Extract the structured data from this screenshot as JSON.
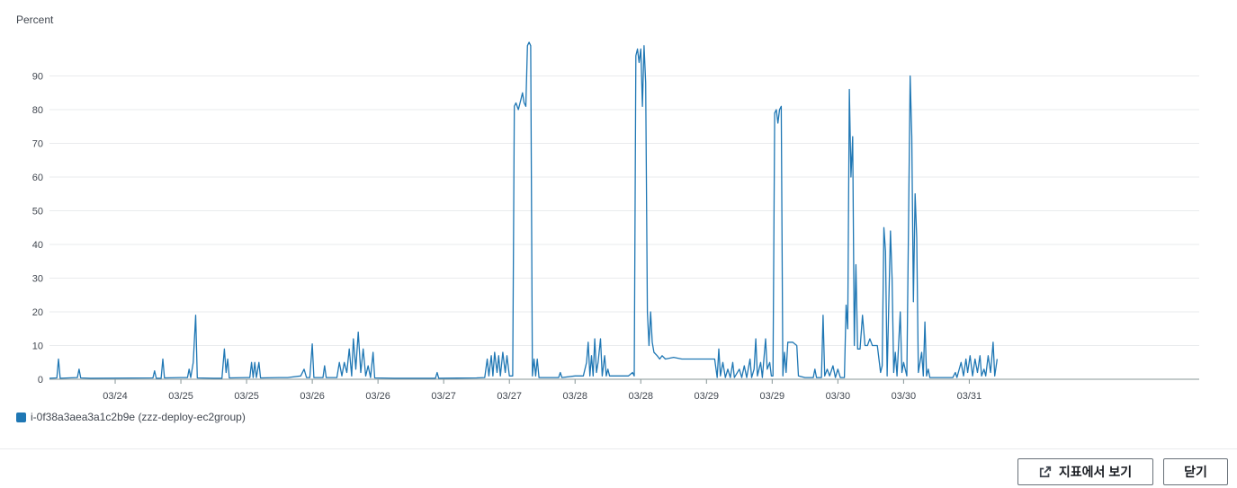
{
  "chart_data": {
    "type": "line",
    "ylabel": "Percent",
    "ylim": [
      0,
      100
    ],
    "yticks": [
      0,
      10,
      20,
      30,
      40,
      50,
      60,
      70,
      80,
      90
    ],
    "xlim": [
      0,
      140
    ],
    "xticks": [
      {
        "x": 8,
        "label": "03/24"
      },
      {
        "x": 16,
        "label": "03/25"
      },
      {
        "x": 24,
        "label": "03/25"
      },
      {
        "x": 32,
        "label": "03/26"
      },
      {
        "x": 40,
        "label": "03/26"
      },
      {
        "x": 48,
        "label": "03/27"
      },
      {
        "x": 56,
        "label": "03/27"
      },
      {
        "x": 64,
        "label": "03/28"
      },
      {
        "x": 72,
        "label": "03/28"
      },
      {
        "x": 80,
        "label": "03/29"
      },
      {
        "x": 88,
        "label": "03/29"
      },
      {
        "x": 96,
        "label": "03/30"
      },
      {
        "x": 104,
        "label": "03/30"
      },
      {
        "x": 112,
        "label": "03/31"
      }
    ],
    "grid": true,
    "legend_position": "bottom-left",
    "series": [
      {
        "name": "i-0f38a3aea3a1c2b9e (zzz-deploy-ec2group)",
        "color": "#1f77b4",
        "points": [
          [
            0,
            0.3
          ],
          [
            0.9,
            0.4
          ],
          [
            1.1,
            6
          ],
          [
            1.3,
            0.3
          ],
          [
            3.4,
            0.5
          ],
          [
            3.6,
            3
          ],
          [
            3.8,
            0.4
          ],
          [
            5,
            0.3
          ],
          [
            12.6,
            0.4
          ],
          [
            12.8,
            2.5
          ],
          [
            13,
            0.3
          ],
          [
            13.6,
            0.3
          ],
          [
            13.8,
            6
          ],
          [
            14,
            0.4
          ],
          [
            16,
            0.5
          ],
          [
            16.8,
            0.5
          ],
          [
            17,
            3
          ],
          [
            17.2,
            0.5
          ],
          [
            17.5,
            5
          ],
          [
            17.8,
            19
          ],
          [
            18,
            0.4
          ],
          [
            20,
            0.3
          ],
          [
            21,
            0.3
          ],
          [
            21.3,
            9
          ],
          [
            21.5,
            2
          ],
          [
            21.7,
            6
          ],
          [
            21.9,
            0.4
          ],
          [
            24,
            0.5
          ],
          [
            24.4,
            0.5
          ],
          [
            24.6,
            5
          ],
          [
            24.8,
            0.5
          ],
          [
            25,
            5
          ],
          [
            25.2,
            0.5
          ],
          [
            25.5,
            5
          ],
          [
            25.7,
            0.4
          ],
          [
            28,
            0.5
          ],
          [
            29,
            0.5
          ],
          [
            30.6,
            1
          ],
          [
            31,
            3
          ],
          [
            31.3,
            0.5
          ],
          [
            31.7,
            0.5
          ],
          [
            32,
            10.5
          ],
          [
            32.2,
            0.5
          ],
          [
            33.3,
            0.5
          ],
          [
            33.5,
            4
          ],
          [
            33.7,
            0.5
          ],
          [
            35,
            0.5
          ],
          [
            35.3,
            5
          ],
          [
            35.6,
            1
          ],
          [
            35.9,
            5
          ],
          [
            36.2,
            2
          ],
          [
            36.5,
            9
          ],
          [
            36.8,
            1
          ],
          [
            37,
            12
          ],
          [
            37.3,
            3
          ],
          [
            37.6,
            14
          ],
          [
            37.9,
            2
          ],
          [
            38.2,
            9
          ],
          [
            38.5,
            1
          ],
          [
            38.8,
            4
          ],
          [
            39.1,
            0.5
          ],
          [
            39.4,
            8
          ],
          [
            39.6,
            0.4
          ],
          [
            42,
            0.3
          ],
          [
            47,
            0.3
          ],
          [
            47.2,
            2
          ],
          [
            47.4,
            0.3
          ],
          [
            52,
            0.4
          ],
          [
            53,
            0.5
          ],
          [
            53.3,
            6
          ],
          [
            53.5,
            1
          ],
          [
            53.8,
            7
          ],
          [
            54,
            1
          ],
          [
            54.2,
            8
          ],
          [
            54.5,
            2
          ],
          [
            54.7,
            7
          ],
          [
            54.9,
            1
          ],
          [
            55.2,
            8
          ],
          [
            55.5,
            2
          ],
          [
            55.7,
            7
          ],
          [
            56,
            1
          ],
          [
            56.4,
            1
          ],
          [
            56.6,
            81
          ],
          [
            56.8,
            82
          ],
          [
            57.1,
            80
          ],
          [
            57.4,
            83
          ],
          [
            57.6,
            85
          ],
          [
            57.8,
            82
          ],
          [
            58,
            81
          ],
          [
            58.2,
            99
          ],
          [
            58.4,
            100
          ],
          [
            58.6,
            99
          ],
          [
            58.8,
            1
          ],
          [
            59,
            6
          ],
          [
            59.2,
            1
          ],
          [
            59.4,
            6
          ],
          [
            59.6,
            0.5
          ],
          [
            62,
            0.5
          ],
          [
            62.2,
            2
          ],
          [
            62.4,
            0.5
          ],
          [
            64,
            1
          ],
          [
            65,
            1
          ],
          [
            65.4,
            5
          ],
          [
            65.6,
            11
          ],
          [
            65.8,
            1
          ],
          [
            66,
            7
          ],
          [
            66.2,
            1
          ],
          [
            66.4,
            12
          ],
          [
            66.6,
            2
          ],
          [
            66.8,
            5
          ],
          [
            67.1,
            12
          ],
          [
            67.3,
            1
          ],
          [
            67.6,
            7
          ],
          [
            67.8,
            1
          ],
          [
            68,
            3
          ],
          [
            68.2,
            1
          ],
          [
            69.5,
            1
          ],
          [
            70.5,
            1
          ],
          [
            71,
            2
          ],
          [
            71.2,
            1
          ],
          [
            71.4,
            96
          ],
          [
            71.6,
            98
          ],
          [
            71.8,
            94
          ],
          [
            72,
            98
          ],
          [
            72.2,
            81
          ],
          [
            72.4,
            99
          ],
          [
            72.6,
            88
          ],
          [
            72.8,
            20
          ],
          [
            73,
            10
          ],
          [
            73.2,
            20
          ],
          [
            73.4,
            11
          ],
          [
            73.6,
            8
          ],
          [
            74,
            7
          ],
          [
            74.3,
            6
          ],
          [
            74.6,
            7
          ],
          [
            75,
            6
          ],
          [
            76,
            6.5
          ],
          [
            77,
            6
          ],
          [
            78,
            6
          ],
          [
            80,
            6
          ],
          [
            81,
            6
          ],
          [
            81.3,
            0.5
          ],
          [
            81.5,
            9
          ],
          [
            81.7,
            1
          ],
          [
            82,
            5
          ],
          [
            82.3,
            0.5
          ],
          [
            82.6,
            3
          ],
          [
            82.9,
            0.5
          ],
          [
            83.2,
            5
          ],
          [
            83.4,
            0.5
          ],
          [
            84,
            3
          ],
          [
            84.3,
            0.5
          ],
          [
            84.6,
            4
          ],
          [
            84.9,
            0.5
          ],
          [
            85.3,
            6
          ],
          [
            85.5,
            0.5
          ],
          [
            85.8,
            3
          ],
          [
            86,
            12
          ],
          [
            86.2,
            1
          ],
          [
            86.6,
            5
          ],
          [
            86.8,
            0.5
          ],
          [
            87.2,
            12
          ],
          [
            87.4,
            3
          ],
          [
            87.7,
            5
          ],
          [
            87.9,
            1
          ],
          [
            88.1,
            1
          ],
          [
            88.3,
            79
          ],
          [
            88.5,
            80
          ],
          [
            88.7,
            76
          ],
          [
            88.9,
            80
          ],
          [
            89.1,
            81
          ],
          [
            89.3,
            1
          ],
          [
            89.5,
            8
          ],
          [
            89.7,
            2
          ],
          [
            89.9,
            11
          ],
          [
            90.5,
            11
          ],
          [
            91,
            10
          ],
          [
            91.2,
            1
          ],
          [
            92,
            0.5
          ],
          [
            93,
            0.5
          ],
          [
            93.2,
            3
          ],
          [
            93.4,
            0.5
          ],
          [
            94,
            0.5
          ],
          [
            94.2,
            19
          ],
          [
            94.4,
            1
          ],
          [
            94.7,
            3
          ],
          [
            95,
            1
          ],
          [
            95.4,
            4
          ],
          [
            95.7,
            0.5
          ],
          [
            96,
            3
          ],
          [
            96.3,
            0.5
          ],
          [
            96.8,
            0.5
          ],
          [
            97,
            22
          ],
          [
            97.2,
            15
          ],
          [
            97.4,
            86
          ],
          [
            97.6,
            60
          ],
          [
            97.8,
            72
          ],
          [
            98,
            10
          ],
          [
            98.2,
            34
          ],
          [
            98.4,
            9
          ],
          [
            98.7,
            9
          ],
          [
            99,
            19
          ],
          [
            99.3,
            10
          ],
          [
            99.6,
            10
          ],
          [
            99.9,
            12
          ],
          [
            100.2,
            10
          ],
          [
            100.8,
            10
          ],
          [
            101.2,
            2
          ],
          [
            101.4,
            4
          ],
          [
            101.6,
            45
          ],
          [
            101.8,
            38
          ],
          [
            102,
            1
          ],
          [
            102.2,
            22
          ],
          [
            102.4,
            44
          ],
          [
            102.6,
            30
          ],
          [
            102.8,
            2
          ],
          [
            103,
            8
          ],
          [
            103.2,
            1
          ],
          [
            103.6,
            20
          ],
          [
            103.8,
            2
          ],
          [
            104,
            5
          ],
          [
            104.4,
            1
          ],
          [
            104.8,
            90
          ],
          [
            105,
            72
          ],
          [
            105.2,
            23
          ],
          [
            105.4,
            55
          ],
          [
            105.6,
            42
          ],
          [
            105.8,
            2
          ],
          [
            106.2,
            8
          ],
          [
            106.4,
            1
          ],
          [
            106.6,
            17
          ],
          [
            106.8,
            1
          ],
          [
            107,
            3
          ],
          [
            107.2,
            0.5
          ],
          [
            110,
            0.5
          ],
          [
            110.3,
            2
          ],
          [
            110.5,
            0.5
          ],
          [
            111,
            5
          ],
          [
            111.3,
            1
          ],
          [
            111.6,
            6
          ],
          [
            111.8,
            2
          ],
          [
            112.1,
            7
          ],
          [
            112.4,
            1
          ],
          [
            112.7,
            6
          ],
          [
            113,
            2
          ],
          [
            113.3,
            7
          ],
          [
            113.5,
            1
          ],
          [
            113.8,
            3
          ],
          [
            114,
            1
          ],
          [
            114.3,
            7
          ],
          [
            114.6,
            2
          ],
          [
            114.9,
            11
          ],
          [
            115.1,
            1
          ],
          [
            115.4,
            6
          ]
        ]
      }
    ]
  },
  "footer": {
    "view_in_metrics_label": "지표에서 보기",
    "close_label": "닫기"
  }
}
